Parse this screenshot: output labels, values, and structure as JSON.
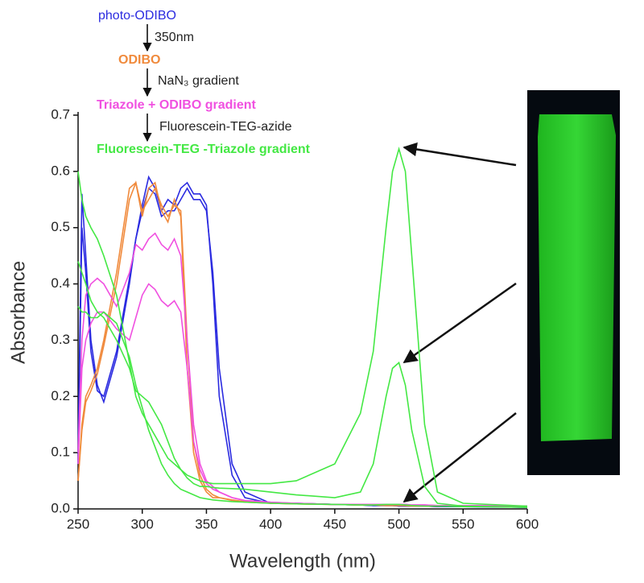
{
  "chart_data": {
    "type": "line",
    "xlabel": "Wavelength (nm)",
    "ylabel": "Absorbance",
    "xlim": [
      250,
      600
    ],
    "ylim": [
      0,
      0.7
    ],
    "xticks": [
      250,
      300,
      350,
      400,
      450,
      500,
      550,
      600
    ],
    "yticks": [
      {
        "value": 0,
        "label": "0.0"
      },
      0.1,
      0.2,
      0.3,
      0.4,
      0.5,
      0.6,
      0.7
    ],
    "reagents": [
      "350nm",
      "NaN₃ gradient",
      "Fluorescein-TEG-azide"
    ],
    "x": [
      250,
      253,
      256,
      260,
      265,
      270,
      280,
      290,
      295,
      300,
      305,
      310,
      315,
      320,
      325,
      330,
      335,
      340,
      345,
      350,
      355,
      360,
      370,
      380,
      400,
      420,
      450,
      470,
      480,
      490,
      495,
      500,
      505,
      510,
      520,
      530,
      550,
      600
    ],
    "series": [
      {
        "name": "photo-ODIBO",
        "color": "#2b2be0",
        "curves": [
          [
            0.1,
            0.56,
            0.45,
            0.3,
            0.22,
            0.19,
            0.27,
            0.4,
            0.48,
            0.54,
            0.59,
            0.57,
            0.53,
            0.55,
            0.54,
            0.57,
            0.58,
            0.56,
            0.56,
            0.54,
            0.4,
            0.2,
            0.06,
            0.02,
            0.01,
            0.01,
            0.008,
            0.007,
            0.006,
            0.006,
            0.006,
            0.005,
            0.005,
            0.005,
            0.005,
            0.004,
            0.004,
            0.003
          ],
          [
            0.08,
            0.5,
            0.42,
            0.28,
            0.21,
            0.2,
            0.28,
            0.41,
            0.48,
            0.53,
            0.57,
            0.56,
            0.52,
            0.53,
            0.53,
            0.55,
            0.57,
            0.55,
            0.55,
            0.53,
            0.42,
            0.25,
            0.08,
            0.03,
            0.01,
            0.01,
            0.008,
            0.007,
            0.006,
            0.006,
            0.006,
            0.005,
            0.005,
            0.005,
            0.005,
            0.004,
            0.004,
            0.003
          ]
        ]
      },
      {
        "name": "ODIBO",
        "color": "#f08a3c",
        "curves": [
          [
            0.05,
            0.15,
            0.2,
            0.22,
            0.25,
            0.3,
            0.42,
            0.57,
            0.58,
            0.52,
            0.57,
            0.58,
            0.53,
            0.51,
            0.55,
            0.52,
            0.25,
            0.1,
            0.05,
            0.03,
            0.02,
            0.02,
            0.015,
            0.012,
            0.01,
            0.009,
            0.008,
            0.007,
            0.007,
            0.006,
            0.006,
            0.006,
            0.006,
            0.005,
            0.005,
            0.005,
            0.005,
            0.005
          ],
          [
            0.05,
            0.14,
            0.19,
            0.21,
            0.24,
            0.29,
            0.4,
            0.55,
            0.58,
            0.53,
            0.55,
            0.57,
            0.54,
            0.52,
            0.54,
            0.53,
            0.3,
            0.12,
            0.06,
            0.035,
            0.025,
            0.02,
            0.016,
            0.013,
            0.01,
            0.009,
            0.008,
            0.007,
            0.007,
            0.006,
            0.006,
            0.006,
            0.006,
            0.005,
            0.005,
            0.005,
            0.005,
            0.005
          ]
        ]
      },
      {
        "name": "Triazole + ODIBO gradient",
        "color": "#f050e0",
        "curves": [
          [
            0.1,
            0.3,
            0.38,
            0.4,
            0.41,
            0.4,
            0.36,
            0.42,
            0.47,
            0.46,
            0.48,
            0.49,
            0.47,
            0.46,
            0.48,
            0.45,
            0.3,
            0.15,
            0.08,
            0.05,
            0.04,
            0.03,
            0.02,
            0.015,
            0.012,
            0.01,
            0.008,
            0.008,
            0.008,
            0.008,
            0.008,
            0.008,
            0.008,
            0.007,
            0.007,
            0.006,
            0.006,
            0.005
          ],
          [
            0.08,
            0.25,
            0.3,
            0.33,
            0.35,
            0.35,
            0.32,
            0.3,
            0.34,
            0.38,
            0.4,
            0.39,
            0.37,
            0.36,
            0.37,
            0.35,
            0.25,
            0.12,
            0.07,
            0.045,
            0.035,
            0.03,
            0.02,
            0.015,
            0.012,
            0.01,
            0.008,
            0.008,
            0.008,
            0.008,
            0.008,
            0.008,
            0.008,
            0.007,
            0.007,
            0.006,
            0.006,
            0.005
          ]
        ]
      },
      {
        "name": "Fluorescein-TEG -Triazole gradient",
        "color": "#44e844",
        "curves": [
          [
            0.6,
            0.55,
            0.52,
            0.5,
            0.48,
            0.45,
            0.38,
            0.26,
            0.2,
            0.17,
            0.15,
            0.13,
            0.11,
            0.09,
            0.08,
            0.07,
            0.06,
            0.055,
            0.05,
            0.047,
            0.045,
            0.045,
            0.045,
            0.045,
            0.045,
            0.05,
            0.08,
            0.17,
            0.28,
            0.5,
            0.6,
            0.64,
            0.6,
            0.45,
            0.15,
            0.03,
            0.01,
            0.005
          ],
          [
            0.44,
            0.42,
            0.4,
            0.37,
            0.35,
            0.34,
            0.3,
            0.25,
            0.21,
            0.2,
            0.19,
            0.17,
            0.15,
            0.12,
            0.09,
            0.07,
            0.055,
            0.045,
            0.04,
            0.04,
            0.038,
            0.037,
            0.036,
            0.035,
            0.03,
            0.025,
            0.02,
            0.03,
            0.08,
            0.2,
            0.25,
            0.26,
            0.22,
            0.14,
            0.04,
            0.01,
            0.005,
            0.003
          ],
          [
            0.36,
            0.35,
            0.35,
            0.34,
            0.34,
            0.35,
            0.33,
            0.27,
            0.22,
            0.18,
            0.14,
            0.11,
            0.08,
            0.06,
            0.045,
            0.035,
            0.03,
            0.025,
            0.02,
            0.018,
            0.016,
            0.015,
            0.013,
            0.012,
            0.01,
            0.009,
            0.008,
            0.007,
            0.007,
            0.008,
            0.008,
            0.008,
            0.007,
            0.006,
            0.005,
            0.005,
            0.004,
            0.003
          ]
        ]
      }
    ]
  }
}
